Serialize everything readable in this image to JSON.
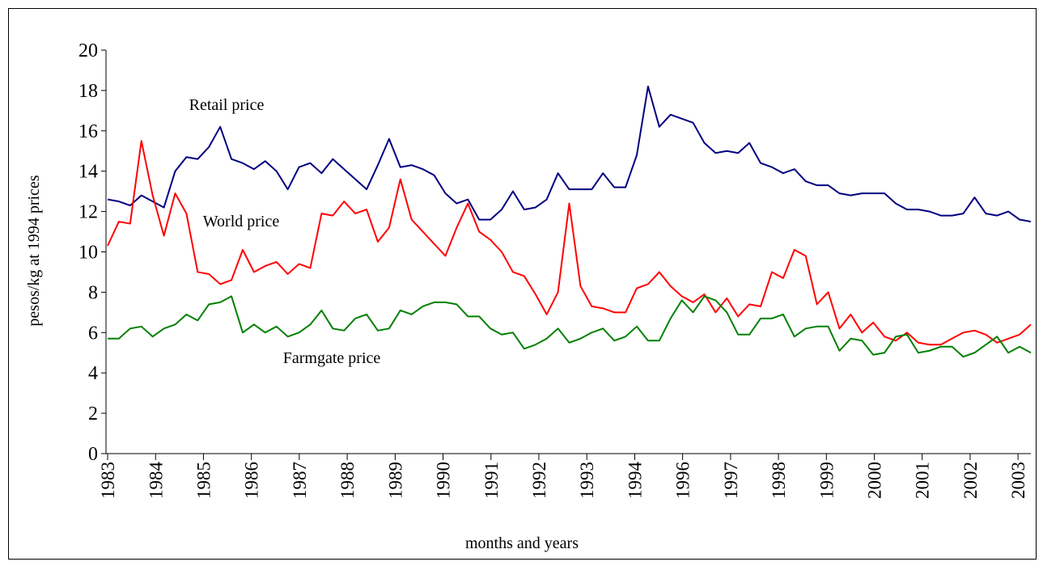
{
  "chart_data": {
    "type": "line",
    "y_label": "pesos/kg at 1994 prices",
    "x_label": "months and years",
    "x": [
      0,
      1,
      2,
      3,
      4,
      5,
      6,
      7,
      8,
      9,
      10,
      11,
      12,
      13,
      14,
      15,
      16,
      17,
      18,
      19,
      20,
      21,
      22,
      23,
      24,
      25,
      26,
      27,
      28,
      29,
      30,
      31,
      32,
      33,
      34,
      35,
      36,
      37,
      38,
      39,
      40,
      41,
      42,
      43,
      44,
      45,
      46,
      47,
      48,
      49,
      50,
      51,
      52,
      53,
      54,
      55,
      56,
      57,
      58,
      59,
      60,
      61,
      62,
      63,
      64,
      65,
      66,
      67,
      68,
      69,
      70,
      71,
      72,
      73,
      74,
      75,
      76,
      77,
      78,
      79,
      80,
      81,
      82
    ],
    "xlim": [
      0,
      82
    ],
    "xticks": [
      {
        "value": 0,
        "label": "1983"
      },
      {
        "value": 4.26,
        "label": "1984"
      },
      {
        "value": 8.51,
        "label": "1985"
      },
      {
        "value": 12.77,
        "label": "1986"
      },
      {
        "value": 17.02,
        "label": "1987"
      },
      {
        "value": 21.28,
        "label": "1988"
      },
      {
        "value": 25.54,
        "label": "1989"
      },
      {
        "value": 29.79,
        "label": "1990"
      },
      {
        "value": 34.05,
        "label": "1991"
      },
      {
        "value": 38.3,
        "label": "1992"
      },
      {
        "value": 42.56,
        "label": "1993"
      },
      {
        "value": 46.82,
        "label": "1994"
      },
      {
        "value": 51.07,
        "label": "1996"
      },
      {
        "value": 55.33,
        "label": "1997"
      },
      {
        "value": 59.58,
        "label": "1998"
      },
      {
        "value": 63.84,
        "label": "1999"
      },
      {
        "value": 68.1,
        "label": "2000"
      },
      {
        "value": 72.35,
        "label": "2001"
      },
      {
        "value": 76.61,
        "label": "2002"
      },
      {
        "value": 80.86,
        "label": "2003"
      }
    ],
    "ylim": [
      0,
      20
    ],
    "yticks": [
      0,
      2,
      4,
      6,
      8,
      10,
      12,
      14,
      16,
      18,
      20
    ],
    "series": [
      {
        "name": "Retail price",
        "color": "#000080",
        "values": [
          12.6,
          12.5,
          12.3,
          12.8,
          12.5,
          12.2,
          14.0,
          14.7,
          14.6,
          15.2,
          16.2,
          14.6,
          14.4,
          14.1,
          14.5,
          14.0,
          13.1,
          14.2,
          14.4,
          13.9,
          14.6,
          14.1,
          13.6,
          13.1,
          14.3,
          15.6,
          14.2,
          14.3,
          14.1,
          13.8,
          12.9,
          12.4,
          12.6,
          11.6,
          11.6,
          12.1,
          13.0,
          12.1,
          12.2,
          12.6,
          13.9,
          13.1,
          13.1,
          13.1,
          13.9,
          13.2,
          13.2,
          14.8,
          18.2,
          16.2,
          16.8,
          16.6,
          16.4,
          15.4,
          14.9,
          15.0,
          14.9,
          15.4,
          14.4,
          14.2,
          13.9,
          14.1,
          13.5,
          13.3,
          13.3,
          12.9,
          12.8,
          12.9,
          12.9,
          12.9,
          12.4,
          12.1,
          12.1,
          12.0,
          11.8,
          11.8,
          11.9,
          12.7,
          11.9,
          11.8,
          12.0,
          11.6,
          11.5
        ]
      },
      {
        "name": "World price",
        "color": "#ff0000",
        "values": [
          10.3,
          11.5,
          11.4,
          15.5,
          12.8,
          10.8,
          12.9,
          11.9,
          9.0,
          8.9,
          8.4,
          8.6,
          10.1,
          9.0,
          9.3,
          9.5,
          8.9,
          9.4,
          9.2,
          11.9,
          11.8,
          12.5,
          11.9,
          12.1,
          10.5,
          11.2,
          13.6,
          11.6,
          11.0,
          10.4,
          9.8,
          11.2,
          12.4,
          11.0,
          10.6,
          10.0,
          9.0,
          8.8,
          7.9,
          6.9,
          8.0,
          12.4,
          8.3,
          7.3,
          7.2,
          7.0,
          7.0,
          8.2,
          8.4,
          9.0,
          8.3,
          7.8,
          7.5,
          7.9,
          7.0,
          7.7,
          6.8,
          7.4,
          7.3,
          9.0,
          8.7,
          10.1,
          9.8,
          7.4,
          8.0,
          6.2,
          6.9,
          6.0,
          6.5,
          5.8,
          5.6,
          6.0,
          5.5,
          5.4,
          5.4,
          5.7,
          6.0,
          6.1,
          5.9,
          5.5,
          5.7,
          5.9,
          6.4
        ]
      },
      {
        "name": "Farmgate price",
        "color": "#008000",
        "values": [
          5.7,
          5.7,
          6.2,
          6.3,
          5.8,
          6.2,
          6.4,
          6.9,
          6.6,
          7.4,
          7.5,
          7.8,
          6.0,
          6.4,
          6.0,
          6.3,
          5.8,
          6.0,
          6.4,
          7.1,
          6.2,
          6.1,
          6.7,
          6.9,
          6.1,
          6.2,
          7.1,
          6.9,
          7.3,
          7.5,
          7.5,
          7.4,
          6.8,
          6.8,
          6.2,
          5.9,
          6.0,
          5.2,
          5.4,
          5.7,
          6.2,
          5.5,
          5.7,
          6.0,
          6.2,
          5.6,
          5.8,
          6.3,
          5.6,
          5.6,
          6.7,
          7.6,
          7.0,
          7.8,
          7.6,
          7.0,
          5.9,
          5.9,
          6.7,
          6.7,
          6.9,
          5.8,
          6.2,
          6.3,
          6.3,
          5.1,
          5.7,
          5.6,
          4.9,
          5.0,
          5.8,
          5.9,
          5.0,
          5.1,
          5.3,
          5.3,
          4.8,
          5.0,
          5.4,
          5.8,
          5.0,
          5.3,
          5.0
        ]
      }
    ]
  }
}
